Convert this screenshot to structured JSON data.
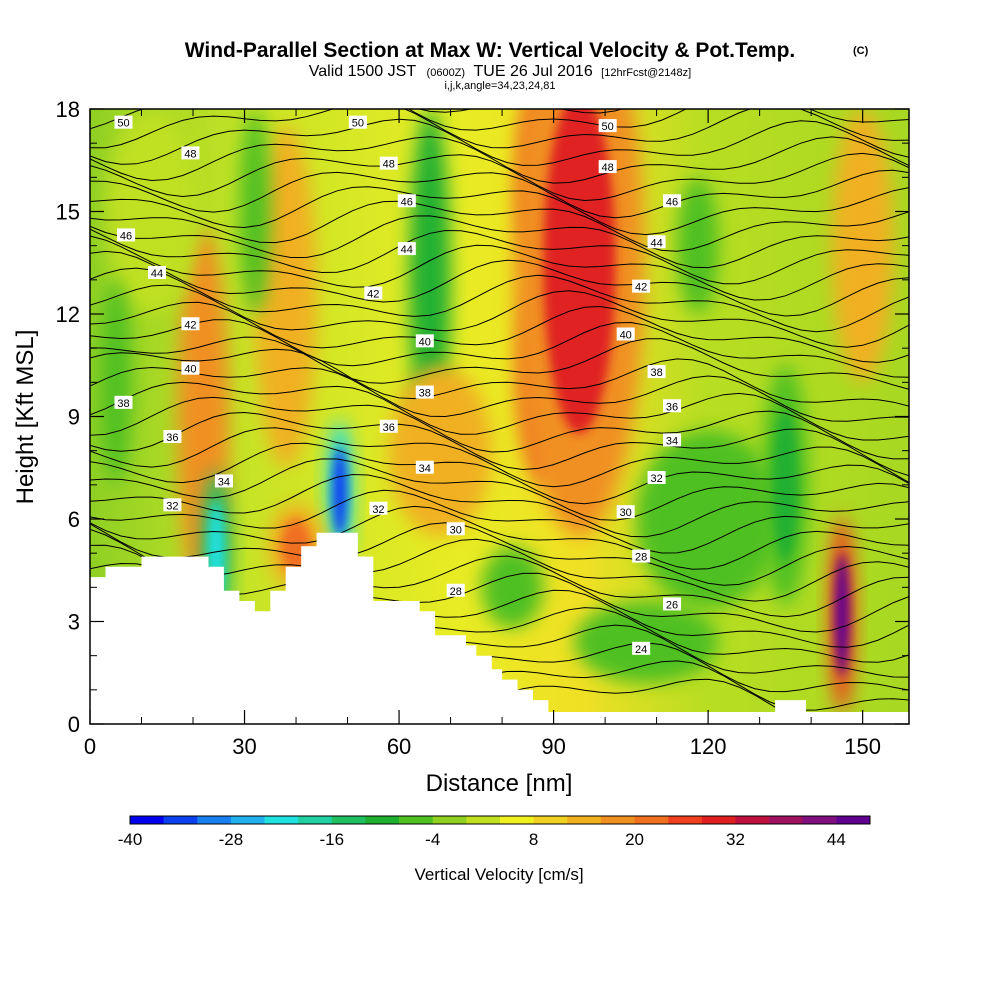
{
  "header": {
    "title": "Wind-Parallel Section at Max W: Vertical Velocity & Pot.Temp.",
    "title_tag": "(C)",
    "valid_prefix": "Valid 1500 JST",
    "valid_z": "(0600Z)",
    "valid_date": "TUE 26 Jul 2016",
    "forecast": "[12hrFcst@2148z]",
    "indices": "i,j,k,angle=34,23,24,81"
  },
  "colors": {
    "palette": [
      "#0000f0",
      "#0a40f0",
      "#1880f0",
      "#20b0f0",
      "#20e0e0",
      "#20d0a0",
      "#20c060",
      "#20b030",
      "#50c020",
      "#90d020",
      "#c0e020",
      "#f0f020",
      "#f0d020",
      "#f0b020",
      "#f09020",
      "#f07020",
      "#f04020",
      "#e02020",
      "#c01040",
      "#a01060",
      "#801080",
      "#600090"
    ],
    "contour_line": "#000000",
    "terrain": "#ffffff"
  },
  "chart_data": {
    "type": "heatmap",
    "xlabel": "Distance [nm]",
    "ylabel": "Height [Kft MSL]",
    "xlim": [
      0,
      159
    ],
    "ylim": [
      0,
      18
    ],
    "xticks": [
      "0",
      "30",
      "60",
      "90",
      "120",
      "150"
    ],
    "yticks": [
      "0",
      "3",
      "6",
      "9",
      "12",
      "15",
      "18"
    ],
    "colorbar": {
      "title": "Vertical Velocity [cm/s]",
      "labels": [
        "-40",
        "-28",
        "-16",
        "-4",
        "8",
        "20",
        "32",
        "44"
      ],
      "min": -40,
      "max": 48,
      "step": 4
    },
    "terrain_top_kft": [
      [
        0,
        4.3
      ],
      [
        3,
        4.3
      ],
      [
        3,
        4.6
      ],
      [
        10,
        4.6
      ],
      [
        10,
        4.9
      ],
      [
        23,
        4.9
      ],
      [
        23,
        4.6
      ],
      [
        26,
        4.6
      ],
      [
        26,
        3.9
      ],
      [
        29,
        3.9
      ],
      [
        29,
        3.6
      ],
      [
        32,
        3.6
      ],
      [
        32,
        3.3
      ],
      [
        35,
        3.3
      ],
      [
        35,
        3.9
      ],
      [
        38,
        3.9
      ],
      [
        38,
        4.6
      ],
      [
        41,
        4.6
      ],
      [
        41,
        5.2
      ],
      [
        44,
        5.2
      ],
      [
        44,
        5.6
      ],
      [
        52,
        5.6
      ],
      [
        52,
        4.9
      ],
      [
        55,
        4.9
      ],
      [
        55,
        3.6
      ],
      [
        64,
        3.6
      ],
      [
        64,
        3.3
      ],
      [
        67,
        3.3
      ],
      [
        67,
        2.6
      ],
      [
        73,
        2.6
      ],
      [
        73,
        2.3
      ],
      [
        75,
        2.3
      ],
      [
        75,
        2.0
      ],
      [
        78,
        2.0
      ],
      [
        78,
        1.6
      ],
      [
        80,
        1.6
      ],
      [
        80,
        1.3
      ],
      [
        83,
        1.3
      ],
      [
        83,
        1.0
      ],
      [
        86,
        1.0
      ],
      [
        86,
        0.7
      ],
      [
        89,
        0.7
      ],
      [
        89,
        0.35
      ],
      [
        133,
        0.35
      ],
      [
        133,
        0.7
      ],
      [
        139,
        0.7
      ],
      [
        139,
        0.35
      ],
      [
        159,
        0.35
      ]
    ],
    "vertical_velocity_cells": [
      {
        "x": 24.5,
        "y": 5.0,
        "value": -22,
        "description": "narrow cyan downdraft"
      },
      {
        "x": 48.5,
        "y": 6.8,
        "value": -34,
        "description": "blue downdraft core"
      },
      {
        "x": 95,
        "y": 13.5,
        "value": 30,
        "description": "red updraft plume"
      },
      {
        "x": 146,
        "y": 3.2,
        "value": 46,
        "description": "purple updraft core"
      },
      {
        "x": 40,
        "y": 5.2,
        "value": 20,
        "description": "orange updraft near terrain"
      },
      {
        "x": 135,
        "y": 7.0,
        "value": -12,
        "description": "green downdraft column"
      }
    ],
    "potential_temperature_labels": [
      {
        "value": "50",
        "x": 6.5,
        "y": 17.6
      },
      {
        "value": "48",
        "x": 19.5,
        "y": 16.7
      },
      {
        "value": "46",
        "x": 7,
        "y": 14.3
      },
      {
        "value": "44",
        "x": 13,
        "y": 13.2
      },
      {
        "value": "42",
        "x": 19.5,
        "y": 11.7
      },
      {
        "value": "40",
        "x": 19.5,
        "y": 10.4
      },
      {
        "value": "38",
        "x": 6.5,
        "y": 9.4
      },
      {
        "value": "36",
        "x": 16,
        "y": 8.4
      },
      {
        "value": "34",
        "x": 26,
        "y": 7.1
      },
      {
        "value": "32",
        "x": 16,
        "y": 6.4
      },
      {
        "value": "50",
        "x": 52,
        "y": 17.6
      },
      {
        "value": "48",
        "x": 58,
        "y": 16.4
      },
      {
        "value": "46",
        "x": 61.5,
        "y": 15.3
      },
      {
        "value": "44",
        "x": 61.5,
        "y": 13.9
      },
      {
        "value": "42",
        "x": 55,
        "y": 12.6
      },
      {
        "value": "40",
        "x": 65,
        "y": 11.2
      },
      {
        "value": "38",
        "x": 65,
        "y": 9.7
      },
      {
        "value": "36",
        "x": 58,
        "y": 8.7
      },
      {
        "value": "34",
        "x": 65,
        "y": 7.5
      },
      {
        "value": "32",
        "x": 56,
        "y": 6.3
      },
      {
        "value": "30",
        "x": 71,
        "y": 5.7
      },
      {
        "value": "28",
        "x": 71,
        "y": 3.9
      },
      {
        "value": "50",
        "x": 100.5,
        "y": 17.5
      },
      {
        "value": "48",
        "x": 100.5,
        "y": 16.3
      },
      {
        "value": "46",
        "x": 113,
        "y": 15.3
      },
      {
        "value": "44",
        "x": 110,
        "y": 14.1
      },
      {
        "value": "42",
        "x": 107,
        "y": 12.8
      },
      {
        "value": "40",
        "x": 104,
        "y": 11.4
      },
      {
        "value": "38",
        "x": 110,
        "y": 10.3
      },
      {
        "value": "36",
        "x": 113,
        "y": 9.3
      },
      {
        "value": "34",
        "x": 113,
        "y": 8.3
      },
      {
        "value": "32",
        "x": 110,
        "y": 7.2
      },
      {
        "value": "30",
        "x": 104,
        "y": 6.2
      },
      {
        "value": "28",
        "x": 107,
        "y": 4.9
      },
      {
        "value": "26",
        "x": 113,
        "y": 3.5
      },
      {
        "value": "24",
        "x": 107,
        "y": 2.2
      }
    ]
  }
}
